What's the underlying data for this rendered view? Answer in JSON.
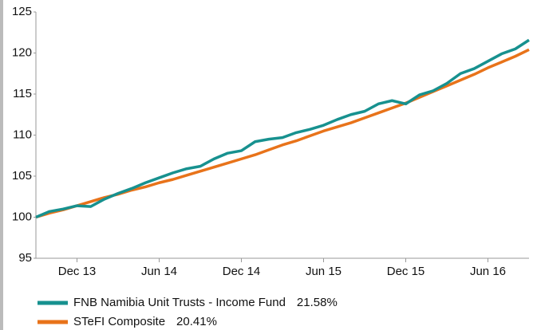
{
  "chart_data": {
    "type": "line",
    "categories": [
      null,
      null,
      null,
      "Dec 13",
      null,
      null,
      null,
      null,
      null,
      "Jun 14",
      null,
      null,
      null,
      null,
      null,
      "Dec 14",
      null,
      null,
      null,
      null,
      null,
      "Jun 15",
      null,
      null,
      null,
      null,
      null,
      "Dec 15",
      null,
      null,
      null,
      null,
      null,
      "Jun 16",
      null,
      null,
      null
    ],
    "series": [
      {
        "name": "FNB Namibia Unit Trusts - Income Fund",
        "return_label": "21.58%",
        "color": "#17918f",
        "values": [
          100,
          100.7,
          101.0,
          101.4,
          101.3,
          102.2,
          102.9,
          103.5,
          104.2,
          104.8,
          105.4,
          105.9,
          106.2,
          107.1,
          107.8,
          108.1,
          109.2,
          109.5,
          109.7,
          110.3,
          110.7,
          111.2,
          111.9,
          112.5,
          112.9,
          113.8,
          114.2,
          113.8,
          114.9,
          115.4,
          116.3,
          117.5,
          118.1,
          119.0,
          119.9,
          120.5,
          121.58
        ]
      },
      {
        "name": "STeFI Composite",
        "return_label": "20.41%",
        "color": "#e8731a",
        "values": [
          100,
          100.5,
          100.9,
          101.4,
          101.9,
          102.4,
          102.8,
          103.3,
          103.7,
          104.2,
          104.6,
          105.1,
          105.6,
          106.1,
          106.6,
          107.1,
          107.6,
          108.2,
          108.8,
          109.3,
          109.9,
          110.5,
          111.0,
          111.5,
          112.1,
          112.7,
          113.3,
          113.9,
          114.6,
          115.3,
          116.0,
          116.7,
          117.4,
          118.2,
          118.9,
          119.6,
          120.41
        ]
      }
    ],
    "ylim": [
      95,
      125
    ],
    "yticks": [
      95,
      100,
      105,
      110,
      115,
      120,
      125
    ],
    "grid": false
  }
}
